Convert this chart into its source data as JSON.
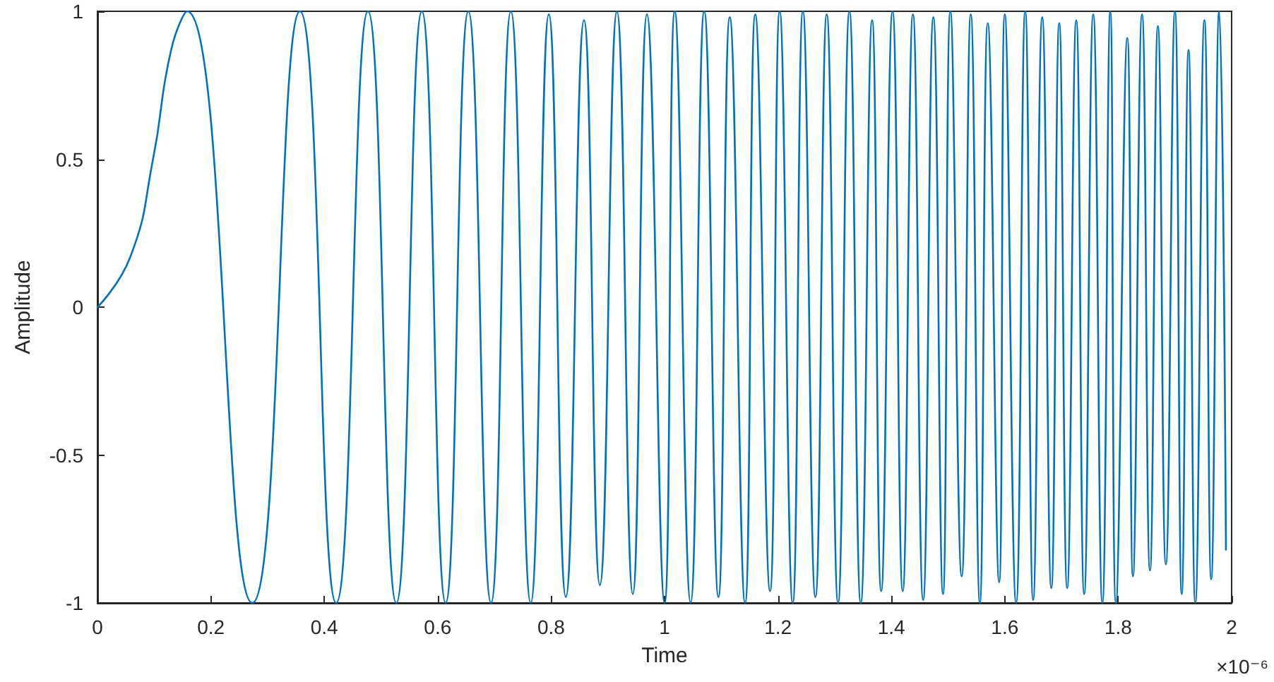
{
  "chart_data": {
    "type": "line",
    "xlabel": "Time",
    "ylabel": "Amplitude",
    "annotations": [
      "×10⁻⁶"
    ],
    "xlim": [
      0,
      2
    ],
    "xticks": [
      0,
      0.2,
      0.4,
      0.6,
      0.8,
      1,
      1.2,
      1.4,
      1.6,
      1.8,
      2
    ],
    "ylim": [
      -1,
      1
    ],
    "yticks": [
      -1,
      -0.5,
      0,
      0.5,
      1
    ],
    "grid": false,
    "marker": "none",
    "line_style": "solid",
    "series": [
      {
        "color": "#0072bd",
        "x": [
          0,
          0.058,
          0.098,
          0.13,
          0.158,
          0.273,
          0.357,
          0.421,
          0.477,
          0.527,
          0.572,
          0.614,
          0.654,
          0.694,
          0.729,
          0.764,
          0.796,
          0.826,
          0.858,
          0.886,
          0.916,
          0.944,
          0.969,
          1.0,
          1.018,
          1.046,
          1.07,
          1.095,
          1.115,
          1.142,
          1.16,
          1.186,
          1.203,
          1.226,
          1.244,
          1.266,
          1.286,
          1.306,
          1.326,
          1.346,
          1.366,
          1.382,
          1.402,
          1.42,
          1.438,
          1.456,
          1.474,
          1.491,
          1.504,
          1.524,
          1.54,
          1.556,
          1.57,
          1.59,
          1.6,
          1.62,
          1.636,
          1.65,
          1.666,
          1.682,
          1.696,
          1.71,
          1.726,
          1.74,
          1.756,
          1.772,
          1.786,
          1.796,
          1.816,
          1.826,
          1.842,
          1.856,
          1.87,
          1.884,
          1.9,
          1.912,
          1.924,
          1.936,
          1.952,
          1.964,
          1.978,
          1.99
        ],
        "values": [
          0,
          0.17,
          0.5,
          0.87,
          1,
          -1,
          1,
          -1,
          1,
          -1,
          1,
          -1,
          1,
          -1,
          1,
          -1,
          0.99,
          -0.98,
          0.97,
          -0.94,
          1,
          -0.97,
          0.99,
          -1,
          1,
          -1,
          1,
          -0.98,
          0.98,
          -1,
          0.99,
          -0.96,
          1,
          -1,
          1,
          -0.98,
          0.99,
          -1,
          1,
          -1,
          0.97,
          -0.96,
          1,
          -0.96,
          0.99,
          -0.99,
          0.98,
          -0.97,
          1,
          -0.91,
          0.99,
          -1,
          0.96,
          -0.93,
          0.99,
          -1,
          1,
          -0.99,
          0.98,
          -0.95,
          0.96,
          -0.95,
          0.97,
          -0.97,
          0.99,
          -1,
          1,
          -1,
          0.91,
          -0.91,
          0.99,
          -0.89,
          0.95,
          -0.87,
          1,
          -0.97,
          0.87,
          -1,
          0.97,
          -0.92,
          1,
          -0.82
        ]
      }
    ]
  }
}
